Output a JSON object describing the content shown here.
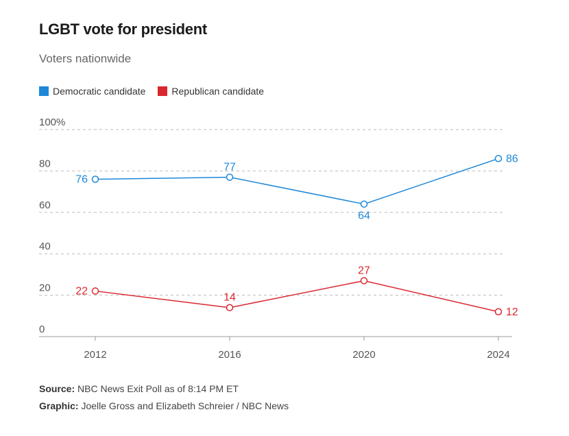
{
  "title": "LGBT vote for president",
  "subtitle": "Voters nationwide",
  "legend": [
    {
      "label": "Democratic candidate",
      "color": "#1e88d8"
    },
    {
      "label": "Republican candidate",
      "color": "#d9272e"
    }
  ],
  "footer": {
    "source_label": "Source:",
    "source_text": " NBC News Exit Poll as of 8:14 PM ET",
    "graphic_label": "Graphic:",
    "graphic_text": " Joelle Gross and Elizabeth Schreier / NBC News"
  },
  "chart_data": {
    "type": "line",
    "title": "LGBT vote for president",
    "subtitle": "Voters nationwide",
    "x": [
      "2012",
      "2016",
      "2020",
      "2024"
    ],
    "ylim": [
      0,
      100
    ],
    "y_ticks": [
      "0",
      "20",
      "40",
      "60",
      "80",
      "100%"
    ],
    "grid": true,
    "legend_position": "top-left",
    "series": [
      {
        "name": "Democratic candidate",
        "color": "#1e88d8",
        "values": [
          76,
          77,
          64,
          86
        ]
      },
      {
        "name": "Republican candidate",
        "color": "#d9272e",
        "values": [
          22,
          14,
          27,
          12
        ]
      }
    ]
  }
}
